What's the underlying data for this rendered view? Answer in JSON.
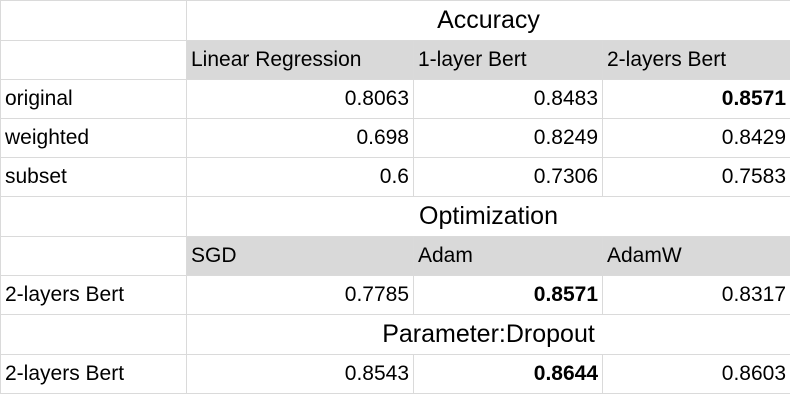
{
  "sections": {
    "accuracy": {
      "title": "Accuracy",
      "headers": [
        "Linear Regression",
        "1-layer Bert",
        "2-layers Bert"
      ],
      "rows": [
        {
          "label": "original",
          "values": [
            "0.8063",
            "0.8483",
            "0.8571"
          ],
          "bold_index": 2
        },
        {
          "label": "weighted",
          "values": [
            "0.698",
            "0.8249",
            "0.8429"
          ],
          "bold_index": null
        },
        {
          "label": "subset",
          "values": [
            "0.6",
            "0.7306",
            "0.7583"
          ],
          "bold_index": null
        }
      ]
    },
    "optimization": {
      "title": "Optimization",
      "headers": [
        "SGD",
        "Adam",
        "AdamW"
      ],
      "rows": [
        {
          "label": "2-layers Bert",
          "values": [
            "0.7785",
            "0.8571",
            "0.8317"
          ],
          "bold_index": 1
        }
      ]
    },
    "dropout": {
      "title": "Parameter:Dropout",
      "rows": [
        {
          "label": "2-layers Bert",
          "values": [
            "0.8543",
            "0.8644",
            "0.8603"
          ],
          "bold_index": 1
        }
      ]
    }
  },
  "colors": {
    "header_bg": "#d9d9d9",
    "grid": "#dadada"
  }
}
